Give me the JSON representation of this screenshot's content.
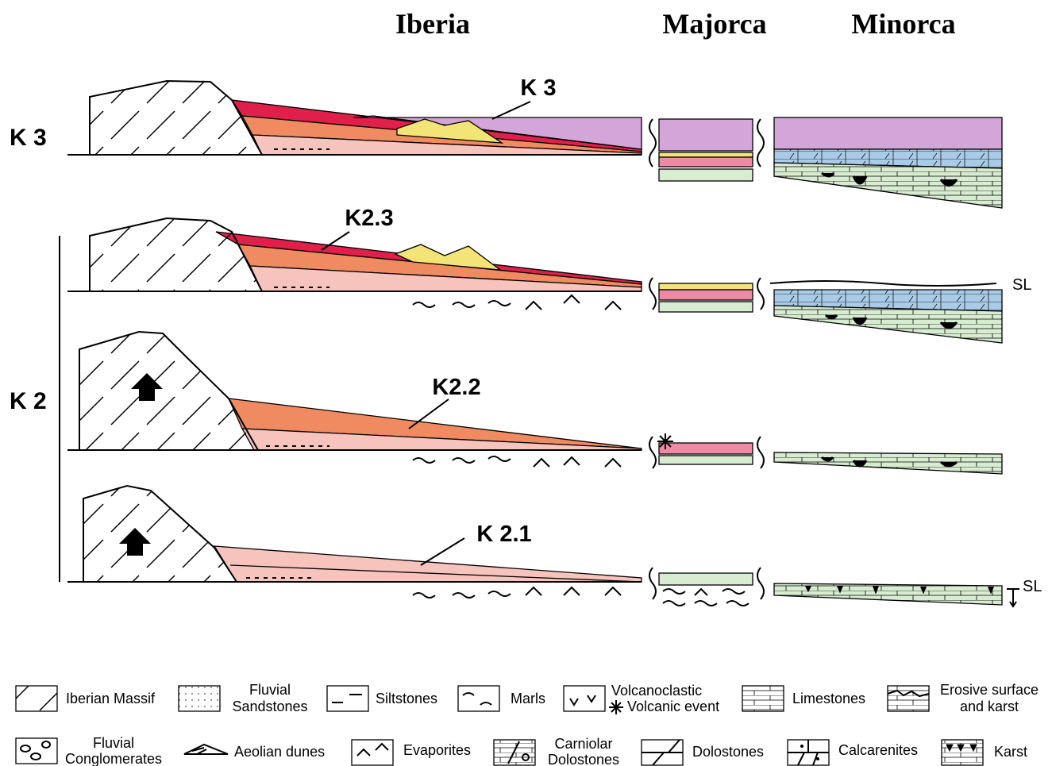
{
  "headers": [
    "Iberia",
    "Majorca",
    "Minorca"
  ],
  "stages": [
    "K 3",
    "K 2"
  ],
  "panels": [
    {
      "label": "K 3"
    },
    {
      "label": "K2.3",
      "sea_level": "SL"
    },
    {
      "label": "K2.2"
    },
    {
      "label": "K 2.1",
      "sea_level": "SL"
    }
  ],
  "legend": [
    {
      "lines": [
        "Iberian Massif"
      ]
    },
    {
      "lines": [
        "Fluvial",
        "Sandstones"
      ]
    },
    {
      "lines": [
        "Siltstones"
      ]
    },
    {
      "lines": [
        "Marls"
      ]
    },
    {
      "lines": [
        "Volcanoclastic",
        "Volcanic event"
      ]
    },
    {
      "lines": [
        "Limestones"
      ]
    },
    {
      "lines": [
        "Erosive surface",
        "and karst"
      ]
    },
    {
      "lines": [
        "Fluvial",
        "Conglomerates"
      ]
    },
    {
      "lines": [
        "Aeolian dunes"
      ]
    },
    {
      "lines": [
        "Evaporites"
      ]
    },
    {
      "lines": [
        "Carniolar",
        "Dolostones"
      ]
    },
    {
      "lines": [
        "Dolostones"
      ]
    },
    {
      "lines": [
        "Calcarenites"
      ]
    },
    {
      "lines": [
        "Karst"
      ]
    }
  ]
}
